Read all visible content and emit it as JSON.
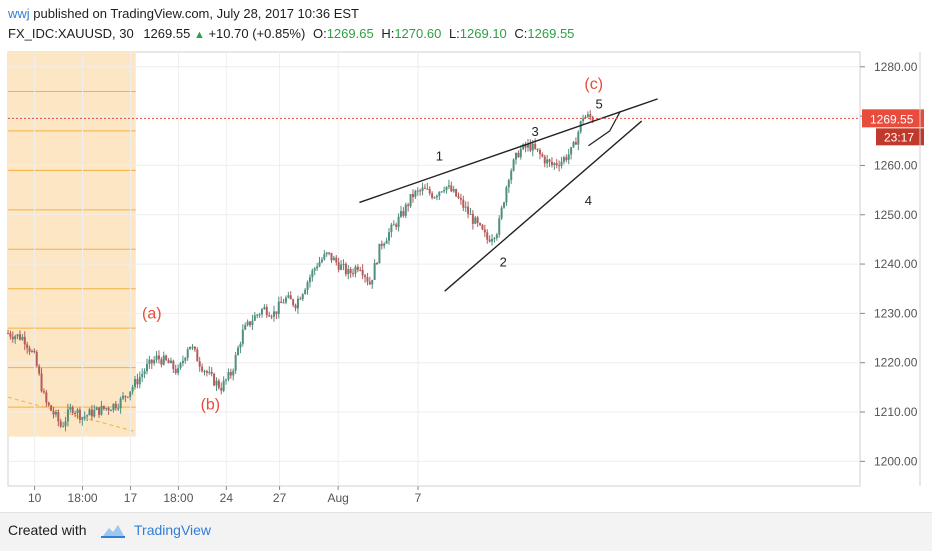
{
  "header": {
    "user": "wwj",
    "published_text": " published on TradingView.com, July 28, 2017 10:36 EST",
    "symbol": "FX_IDC:XAUUSD, 30",
    "last": "1269.55",
    "change": "+10.70 (+0.85%)",
    "o_label": "O:",
    "o_value": "1269.65",
    "h_label": "H:",
    "h_value": "1270.60",
    "l_label": "L:",
    "l_value": "1269.10",
    "c_label": "C:",
    "c_value": "1269.55"
  },
  "colors": {
    "up": "#2ea043",
    "candle_up": "#4f8f7f",
    "candle_down": "#b45a5a",
    "wave": "#e74c3c",
    "shade": "#fde6c4",
    "shade_line": "#f5b041",
    "price_line": "#e74c3c",
    "brand": "#2f7ed8"
  },
  "chart_data": {
    "type": "candlestick",
    "ylim": [
      1195,
      1283
    ],
    "yticks": [
      "1200.00",
      "1210.00",
      "1220.00",
      "1230.00",
      "1240.00",
      "1250.00",
      "1260.00",
      "1270.00",
      "1280.00"
    ],
    "xticks": [
      "10",
      "18:00",
      "17",
      "18:00",
      "24",
      "27",
      "Aug",
      "7"
    ],
    "xlim": [
      0,
      160
    ],
    "price_series": [
      [
        0,
        1226
      ],
      [
        3,
        1225
      ],
      [
        5,
        1221
      ],
      [
        7,
        1212
      ],
      [
        9,
        1209
      ],
      [
        10,
        1207
      ],
      [
        12,
        1211
      ],
      [
        14,
        1209
      ],
      [
        16,
        1210
      ],
      [
        19,
        1211
      ],
      [
        21,
        1212
      ],
      [
        24,
        1216
      ],
      [
        26,
        1219
      ],
      [
        28,
        1221
      ],
      [
        30,
        1220
      ],
      [
        32,
        1218
      ],
      [
        34,
        1224
      ],
      [
        36,
        1220
      ],
      [
        38,
        1217
      ],
      [
        40,
        1215
      ],
      [
        42,
        1218
      ],
      [
        44,
        1226
      ],
      [
        46,
        1229
      ],
      [
        48,
        1231
      ],
      [
        50,
        1230
      ],
      [
        52,
        1233
      ],
      [
        54,
        1232
      ],
      [
        56,
        1236
      ],
      [
        58,
        1240
      ],
      [
        60,
        1242
      ],
      [
        62,
        1240
      ],
      [
        64,
        1238
      ],
      [
        66,
        1240
      ],
      [
        68,
        1236
      ],
      [
        70,
        1244
      ],
      [
        72,
        1247
      ],
      [
        74,
        1250
      ],
      [
        76,
        1254
      ],
      [
        78,
        1255
      ],
      [
        80,
        1254
      ],
      [
        82,
        1256
      ],
      [
        84,
        1254
      ],
      [
        86,
        1251
      ],
      [
        88,
        1248
      ],
      [
        90,
        1245
      ],
      [
        92,
        1247
      ],
      [
        94,
        1258
      ],
      [
        96,
        1263
      ],
      [
        98,
        1264
      ],
      [
        100,
        1262
      ],
      [
        102,
        1260
      ],
      [
        104,
        1261
      ],
      [
        106,
        1263
      ],
      [
        108,
        1270
      ],
      [
        110,
        1269.55
      ]
    ],
    "last_price": "1269.55",
    "countdown": "23:17",
    "wave_labels": [
      {
        "text": "(a)",
        "x": 27,
        "y": 1229,
        "color": "wave"
      },
      {
        "text": "(b)",
        "x": 38,
        "y": 1210.5,
        "color": "wave"
      },
      {
        "text": "(c)",
        "x": 110,
        "y": 1275.5,
        "color": "wave"
      },
      {
        "text": "1",
        "x": 81,
        "y": 1261
      },
      {
        "text": "2",
        "x": 93,
        "y": 1239.5
      },
      {
        "text": "3",
        "x": 99,
        "y": 1266
      },
      {
        "text": "4",
        "x": 109,
        "y": 1252
      },
      {
        "text": "5",
        "x": 111,
        "y": 1271.5
      }
    ],
    "trendlines": [
      {
        "x1": 66,
        "y1": 1252.5,
        "x2": 122,
        "y2": 1273.5
      },
      {
        "x1": 82,
        "y1": 1234.5,
        "x2": 119,
        "y2": 1269
      }
    ],
    "wave5_projection": [
      [
        109,
        1264
      ],
      [
        113,
        1267
      ],
      [
        115,
        1271
      ]
    ],
    "shaded_region": {
      "x_end": 24,
      "y_top": 1283,
      "y_bottom": 1205
    },
    "shade_levels": [
      1211,
      1219,
      1227,
      1235,
      1243,
      1251,
      1259,
      1267,
      1275
    ]
  },
  "footer": {
    "created_with": "Created with",
    "brand": "TradingView",
    "logo_icon": "tradingview-cloud-icon"
  }
}
